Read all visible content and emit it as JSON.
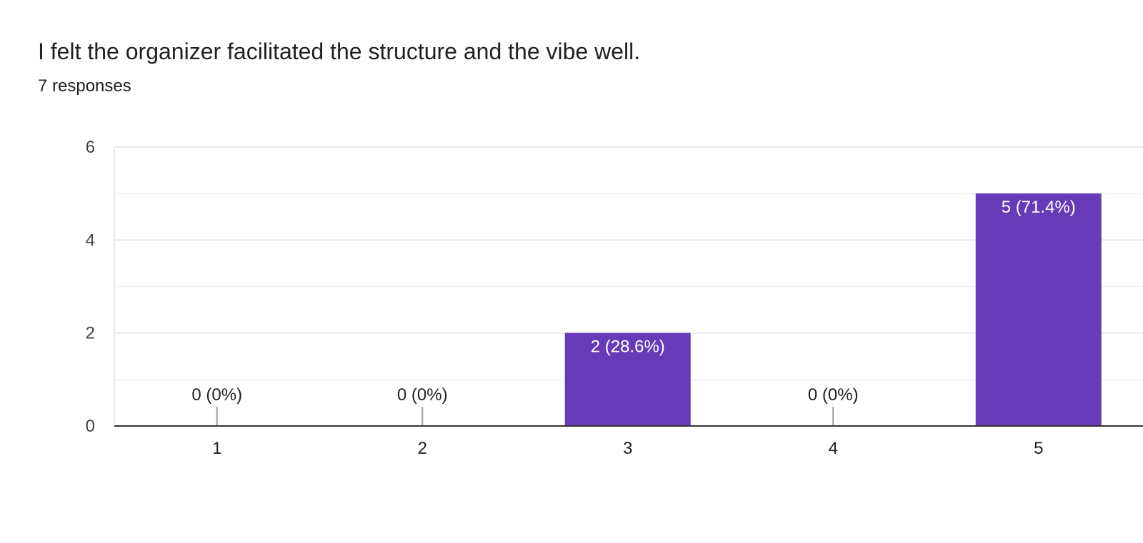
{
  "question": {
    "title": "I felt the organizer facilitated the structure and the vibe well.",
    "responses": "7 responses"
  },
  "colors": {
    "bar": "#673AB7",
    "grid_major": "#e8e8e8",
    "grid_minor": "#f3f3f3",
    "axis": "#333333",
    "zero_stub": "#9e9e9e",
    "label_inside": "#ffffff",
    "label_outside": "#222222"
  },
  "chart_data": {
    "type": "bar",
    "categories": [
      "1",
      "2",
      "3",
      "4",
      "5"
    ],
    "values": [
      0,
      0,
      2,
      0,
      5
    ],
    "data_labels": [
      "0 (0%)",
      "0 (0%)",
      "2 (28.6%)",
      "0 (0%)",
      "5 (71.4%)"
    ],
    "title": "I felt the organizer facilitated the structure and the vibe well.",
    "xlabel": "",
    "ylabel": "",
    "ylim": [
      0,
      6
    ],
    "yticks": [
      0,
      2,
      4,
      6
    ],
    "grid": true,
    "legend": "none"
  }
}
